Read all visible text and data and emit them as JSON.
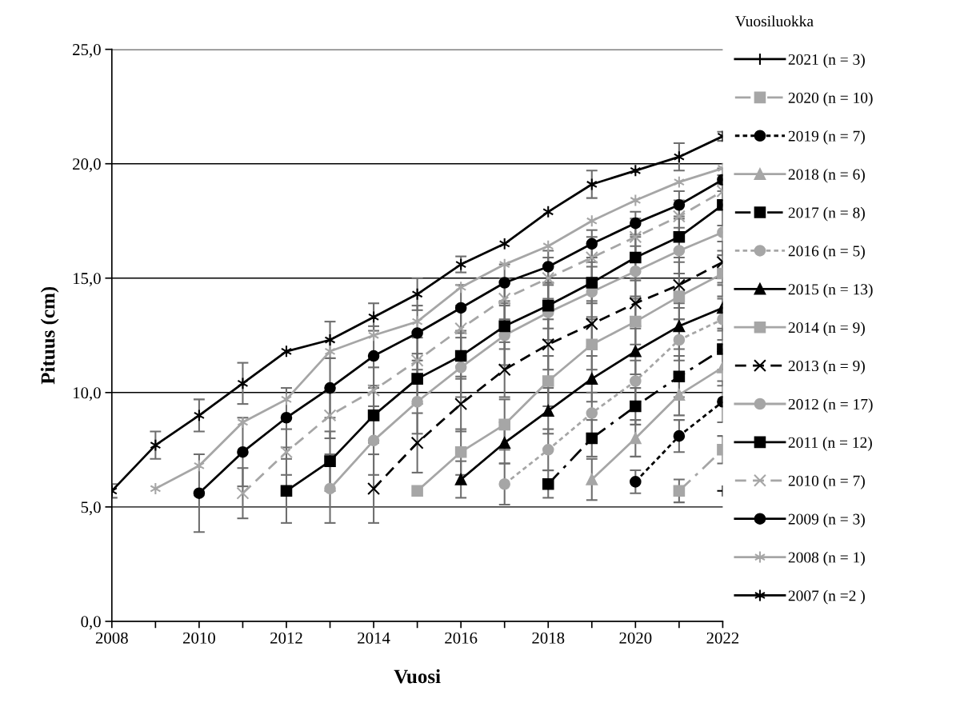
{
  "chart_data": {
    "type": "line",
    "xlabel": "Vuosi",
    "ylabel": "Pituus (cm)",
    "legend_title": "Vuosiluokka",
    "legend": "right",
    "grid": "y",
    "xlim": [
      2008,
      2022
    ],
    "xticks": [
      2008,
      {
        "value": 2009,
        "label": null
      },
      2010,
      {
        "value": 2011,
        "label": null
      },
      2012,
      {
        "value": 2013,
        "label": null
      },
      2014,
      {
        "value": 2015,
        "label": null
      },
      2016,
      {
        "value": 2017,
        "label": null
      },
      2018,
      {
        "value": 2019,
        "label": null
      },
      2020,
      {
        "value": 2021,
        "label": null
      },
      2022
    ],
    "ylim": [
      0,
      25
    ],
    "yticks": [
      {
        "value": 0,
        "label": "0,0"
      },
      {
        "value": 5,
        "label": "5,0"
      },
      {
        "value": 10,
        "label": "10,0"
      },
      {
        "value": 15,
        "label": "15,0"
      },
      {
        "value": 20,
        "label": "20,0"
      },
      {
        "value": 25,
        "label": "25,0"
      }
    ],
    "series": [
      {
        "name": "2021 (n = 3)",
        "color": "#000000",
        "marker": "plus",
        "line_style": "solid",
        "x": [
          2022
        ],
        "values": [
          5.7
        ],
        "errors": [
          null
        ]
      },
      {
        "name": "2020 (n = 10)",
        "color": "#a6a6a6",
        "marker": "square",
        "line_style": "dashdot",
        "x": [
          2021,
          2022
        ],
        "values": [
          5.7,
          7.5
        ],
        "errors": [
          0.5,
          0.6
        ]
      },
      {
        "name": "2019 (n = 7)",
        "color": "#000000",
        "marker": "circle",
        "line_style": "dotted",
        "x": [
          2020,
          2021,
          2022
        ],
        "values": [
          6.1,
          8.1,
          9.6
        ],
        "errors": [
          0.5,
          0.7,
          0.9
        ]
      },
      {
        "name": "2018 (n = 6)",
        "color": "#a6a6a6",
        "marker": "triangle",
        "line_style": "solid",
        "x": [
          2019,
          2020,
          2021,
          2022
        ],
        "values": [
          6.2,
          8.0,
          9.9,
          11.1
        ],
        "errors": [
          0.9,
          0.8,
          0.9,
          0.8
        ]
      },
      {
        "name": "2017 (n = 8)",
        "color": "#000000",
        "marker": "square",
        "line_style": "dashdot",
        "x": [
          2018,
          2019,
          2020,
          2021,
          2022
        ],
        "values": [
          6.0,
          8.0,
          9.4,
          10.7,
          11.9
        ],
        "errors": [
          0.6,
          0.8,
          0.8,
          0.9,
          0.9
        ]
      },
      {
        "name": "2016 (n = 5)",
        "color": "#a6a6a6",
        "marker": "circle",
        "line_style": "dotted",
        "x": [
          2017,
          2018,
          2019,
          2020,
          2021,
          2022
        ],
        "values": [
          6.0,
          7.5,
          9.1,
          10.5,
          12.3,
          13.2
        ],
        "errors": [
          0.9,
          0.9,
          0.9,
          0.9,
          0.9,
          0.9
        ]
      },
      {
        "name": "2015 (n = 13)",
        "color": "#000000",
        "marker": "triangle",
        "line_style": "solid",
        "x": [
          2016,
          2017,
          2018,
          2019,
          2020,
          2021,
          2022
        ],
        "values": [
          6.2,
          7.8,
          9.2,
          10.6,
          11.8,
          12.9,
          13.7
        ],
        "errors": [
          0.8,
          0.9,
          1.0,
          1.0,
          1.0,
          1.0,
          1.0
        ]
      },
      {
        "name": "2014 (n = 9)",
        "color": "#a6a6a6",
        "marker": "square",
        "line_style": "solid",
        "x": [
          2015,
          2016,
          2017,
          2018,
          2019,
          2020,
          2021,
          2022
        ],
        "values": [
          5.7,
          7.4,
          8.6,
          10.5,
          12.1,
          13.1,
          14.2,
          15.2
        ],
        "errors": [
          null,
          1.0,
          1.1,
          1.1,
          1.1,
          1.0,
          1.0,
          1.0
        ]
      },
      {
        "name": "2013 (n = 9)",
        "color": "#000000",
        "marker": "x",
        "line_style": "dashed",
        "x": [
          2014,
          2015,
          2016,
          2017,
          2018,
          2019,
          2020,
          2021,
          2022
        ],
        "values": [
          5.8,
          7.8,
          9.5,
          11.0,
          12.1,
          13.0,
          13.9,
          14.7,
          15.7
        ],
        "errors": [
          1.5,
          1.3,
          1.2,
          1.2,
          1.1,
          1.0,
          1.0,
          1.0,
          0.9
        ]
      },
      {
        "name": "2012 (n = 17)",
        "color": "#a6a6a6",
        "marker": "circle",
        "line_style": "solid",
        "x": [
          2013,
          2014,
          2015,
          2016,
          2017,
          2018,
          2019,
          2020,
          2021,
          2022
        ],
        "values": [
          5.8,
          7.9,
          9.6,
          11.1,
          12.5,
          13.5,
          14.4,
          15.3,
          16.2,
          17.0
        ],
        "errors": [
          1.5,
          1.5,
          1.4,
          1.3,
          1.3,
          1.2,
          1.1,
          1.1,
          1.0,
          1.0
        ]
      },
      {
        "name": "2011 (n = 12)",
        "color": "#000000",
        "marker": "square",
        "line_style": "solid",
        "x": [
          2012,
          2013,
          2014,
          2015,
          2016,
          2017,
          2018,
          2019,
          2020,
          2021,
          2022
        ],
        "values": [
          5.7,
          7.0,
          9.0,
          10.6,
          11.6,
          12.9,
          13.8,
          14.8,
          15.9,
          16.8,
          18.2
        ],
        "errors": [
          1.4,
          1.3,
          1.2,
          1.1,
          1.0,
          1.0,
          1.0,
          0.9,
          0.9,
          0.9,
          0.9
        ]
      },
      {
        "name": "2010 (n = 7)",
        "color": "#a6a6a6",
        "marker": "x",
        "line_style": "dashed",
        "x": [
          2011,
          2012,
          2013,
          2014,
          2015,
          2016,
          2017,
          2018,
          2019,
          2020,
          2021,
          2022
        ],
        "values": [
          5.6,
          7.4,
          9.0,
          10.1,
          11.4,
          12.8,
          14.1,
          15.0,
          15.9,
          16.8,
          17.7,
          18.8
        ],
        "errors": [
          1.1,
          1.0,
          1.0,
          1.0,
          1.0,
          1.0,
          0.9,
          0.9,
          0.9,
          0.8,
          0.7,
          0.7
        ]
      },
      {
        "name": "2009 (n = 3)",
        "color": "#000000",
        "marker": "circle",
        "line_style": "solid",
        "x": [
          2010,
          2011,
          2012,
          2013,
          2014,
          2015,
          2016,
          2017,
          2018,
          2019,
          2020,
          2021,
          2022
        ],
        "values": [
          5.6,
          7.4,
          8.9,
          10.2,
          11.6,
          12.6,
          13.7,
          14.8,
          15.5,
          16.5,
          17.4,
          18.2,
          19.3
        ],
        "errors": [
          1.7,
          1.5,
          1.3,
          1.3,
          1.3,
          1.2,
          1.0,
          0.8,
          0.7,
          0.6,
          0.5,
          0.6,
          0.5
        ]
      },
      {
        "name": "2008 (n = 1)",
        "color": "#a6a6a6",
        "marker": "cross",
        "line_style": "solid",
        "x": [
          2009,
          2010,
          2011,
          2012,
          2013,
          2014,
          2015,
          2016,
          2017,
          2018,
          2019,
          2020,
          2021,
          2022
        ],
        "values": [
          5.8,
          6.8,
          8.7,
          9.7,
          11.8,
          12.5,
          13.1,
          14.6,
          15.6,
          16.4,
          17.5,
          18.4,
          19.2,
          19.8
        ]
      },
      {
        "name": "2007 (n =2 )",
        "color": "#000000",
        "marker": "cross",
        "line_style": "solid",
        "x": [
          2008,
          2009,
          2010,
          2011,
          2012,
          2013,
          2014,
          2015,
          2016,
          2017,
          2018,
          2019,
          2020,
          2021,
          2022
        ],
        "values": [
          5.7,
          7.7,
          9.0,
          10.4,
          11.8,
          12.3,
          13.3,
          14.3,
          15.6,
          16.5,
          17.9,
          19.1,
          19.7,
          20.3,
          21.2
        ],
        "errors": [
          0.3,
          0.6,
          0.7,
          0.9,
          null,
          0.8,
          0.6,
          0.7,
          0.35,
          null,
          null,
          0.6,
          null,
          0.6,
          0.2
        ]
      }
    ]
  }
}
